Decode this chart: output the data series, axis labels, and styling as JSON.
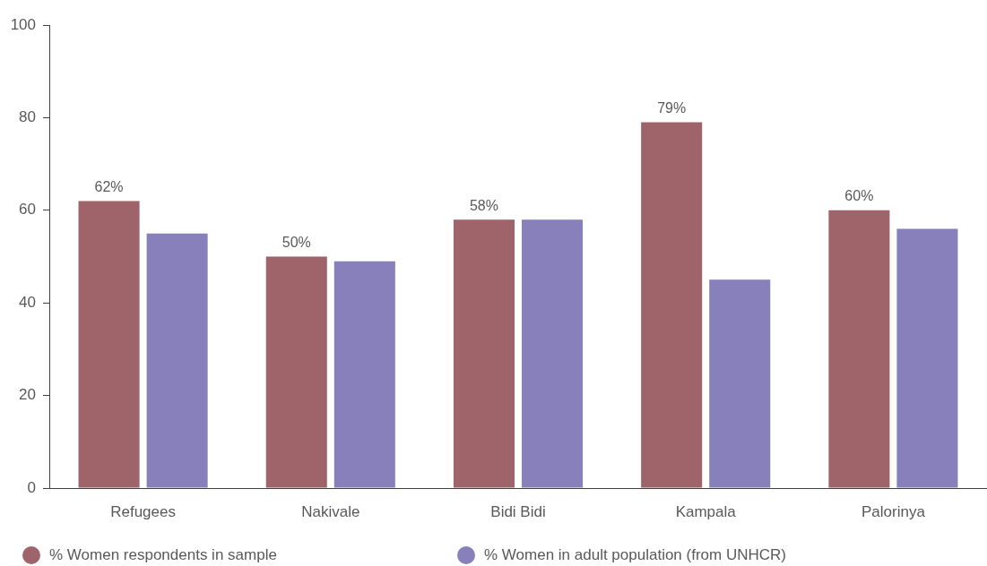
{
  "chart_data": {
    "type": "bar",
    "categories": [
      "Refugees",
      "Nakivale",
      "Bidi Bidi",
      "Kampala",
      "Palorinya"
    ],
    "series": [
      {
        "name": "% Women respondents in sample",
        "color": "#9e6469",
        "values": [
          62,
          50,
          58,
          79,
          60
        ],
        "value_labels": [
          "62%",
          "50%",
          "58%",
          "79%",
          "60%"
        ]
      },
      {
        "name": "% Women in adult population (from UNHCR)",
        "color": "#8780bb",
        "values": [
          55,
          49,
          58,
          45,
          56
        ]
      }
    ],
    "ylim": [
      0,
      100
    ],
    "yticks": [
      0,
      20,
      40,
      60,
      80,
      100
    ],
    "legend": "bottom left"
  }
}
